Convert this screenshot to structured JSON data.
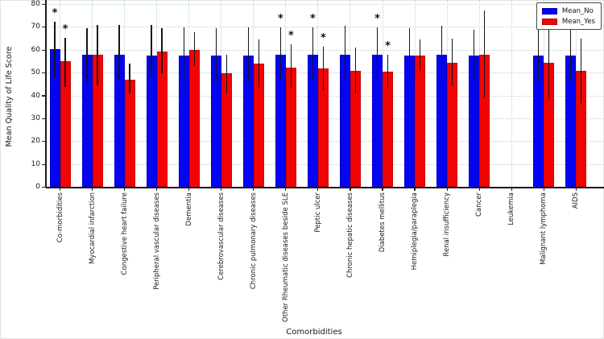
{
  "figure": {
    "ylabel": "Mean Quality of Life Score",
    "xlabel": "Comorbidities",
    "significance_marker": "*",
    "legend": {
      "items": [
        {
          "label": "Mean_No",
          "color": "#0404f2"
        },
        {
          "label": "Mean_Yes",
          "color": "#f20404"
        }
      ]
    }
  },
  "chart_data": {
    "type": "bar",
    "title": "",
    "xlabel": "Comorbidities",
    "ylabel": "Mean Quality of Life Score",
    "ylim": [
      0,
      80
    ],
    "yticks": [
      0,
      10,
      20,
      30,
      40,
      50,
      60,
      70,
      80
    ],
    "grid": true,
    "grid_style": "dotted",
    "legend_position": "upper right",
    "error_bars": true,
    "significance_marker": "*",
    "categories": [
      "Co-morbidities",
      "Myocardial infarction",
      "Congestive heart failure",
      "Peripheral vascular diseases",
      "Dementia",
      "Cerebrovascular diseases",
      "Chronic pulmonary diseases",
      "Other Rheumatic diseases beside SLE",
      "Peptic ulcer",
      "Chronic hepatic diseases",
      "Diabetes mellitus",
      "Hemiplegia/paraplegia",
      "Renal insufficiency",
      "Cancer",
      "Leukemia",
      "Malignant lymphoma",
      "AIDS"
    ],
    "series": [
      {
        "name": "Mean_No",
        "color": "#0404f2",
        "values": [
          60.5,
          58,
          58,
          57.5,
          57.5,
          57.5,
          57.5,
          58,
          58,
          58,
          58,
          57.5,
          58,
          57.5,
          null,
          57.5,
          57.5
        ],
        "err_low": [
          48,
          46,
          47,
          48,
          46.5,
          46.5,
          46.5,
          47,
          47,
          47,
          47,
          46,
          46.5,
          46,
          null,
          46,
          46.5
        ],
        "err_high": [
          72.5,
          69.5,
          71,
          71,
          70,
          69.5,
          70,
          70,
          70,
          70.5,
          70,
          69.5,
          70.5,
          69,
          null,
          69.5,
          69.5
        ],
        "significant": [
          true,
          false,
          false,
          false,
          false,
          false,
          false,
          true,
          true,
          false,
          true,
          false,
          false,
          false,
          false,
          false,
          false
        ]
      },
      {
        "name": "Mean_Yes",
        "color": "#f20404",
        "values": [
          55,
          58,
          47,
          59.5,
          60,
          50,
          54,
          52.5,
          52,
          51,
          50.5,
          57.5,
          54.5,
          58,
          null,
          54.5,
          51
        ],
        "err_low": [
          44,
          44.5,
          41,
          50,
          53,
          41,
          43.5,
          43,
          42.5,
          41,
          43,
          51,
          44.5,
          39,
          null,
          38.5,
          37
        ],
        "err_high": [
          65.5,
          71,
          54,
          69.5,
          68,
          58,
          64.5,
          62.5,
          61.5,
          61,
          58,
          64.5,
          65,
          77.5,
          null,
          70,
          65
        ],
        "significant": [
          true,
          false,
          false,
          false,
          false,
          false,
          false,
          true,
          true,
          false,
          true,
          false,
          false,
          false,
          false,
          false,
          false
        ]
      }
    ]
  }
}
